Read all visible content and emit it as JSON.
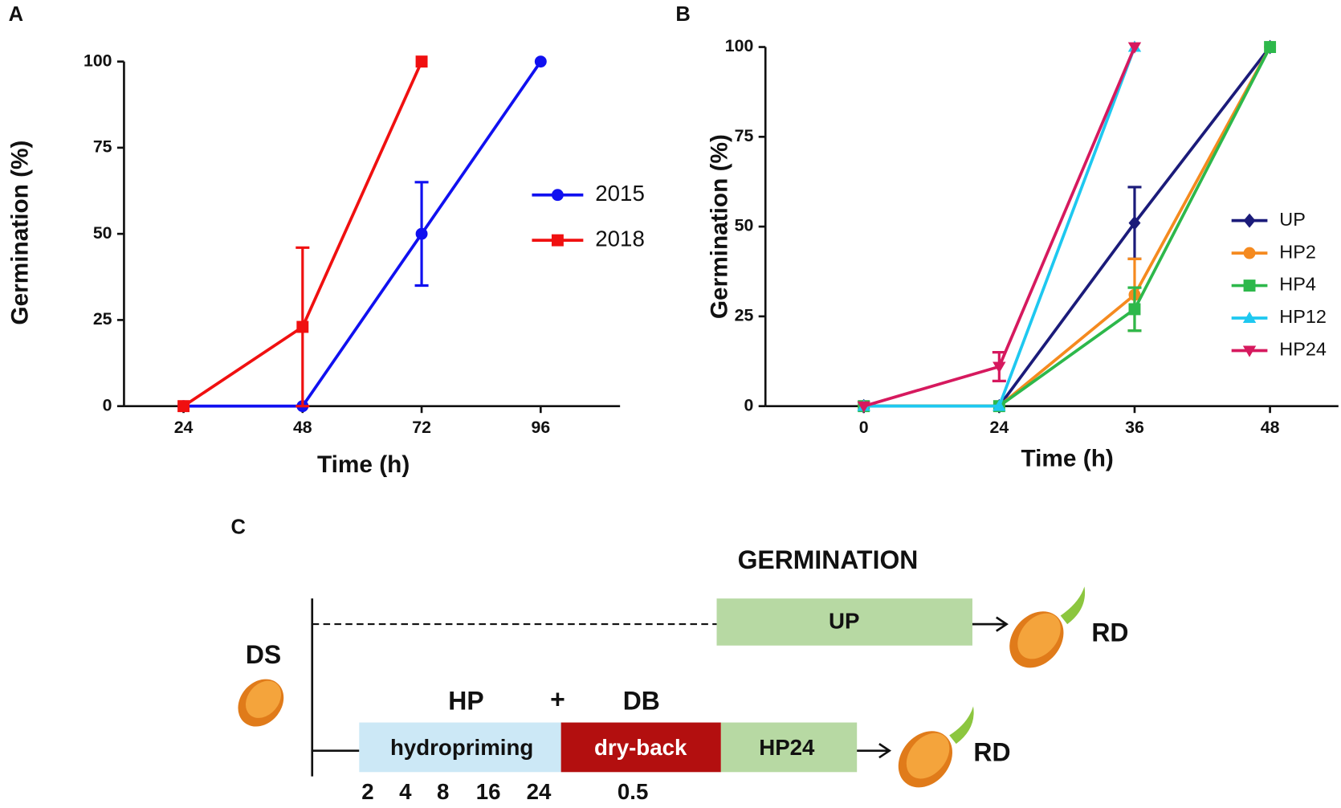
{
  "chart_data": [
    {
      "type": "line",
      "label": "A",
      "ylabel": "Germination (%)",
      "xlabel": "Time (h)",
      "xlim": [
        12,
        112
      ],
      "xticks": [
        24,
        48,
        72,
        96
      ],
      "ylim": [
        0,
        100
      ],
      "yticks": [
        0,
        25,
        50,
        75,
        100
      ],
      "legend": "right",
      "series": [
        {
          "name": "2015",
          "color": "#1010f0",
          "marker": "circle",
          "x": [
            24,
            48,
            72,
            96
          ],
          "values": [
            0,
            0,
            50,
            100
          ],
          "errors": [
            0,
            0,
            15,
            0
          ]
        },
        {
          "name": "2018",
          "color": "#f01010",
          "marker": "square",
          "x": [
            24,
            48,
            72
          ],
          "values": [
            0,
            23,
            100
          ],
          "errors": [
            0,
            23,
            0
          ]
        }
      ]
    },
    {
      "type": "line",
      "label": "B",
      "ylabel": "Germination (%)",
      "xlabel": "Time (h)",
      "categories": [
        "0",
        "24",
        "36",
        "48"
      ],
      "ylim": [
        0,
        100
      ],
      "yticks": [
        0,
        25,
        50,
        75,
        100
      ],
      "legend": "right",
      "series": [
        {
          "name": "UP",
          "color": "#1b1b7a",
          "marker": "diamond",
          "values": [
            0,
            0,
            51,
            100
          ],
          "errors": [
            0,
            0,
            10,
            0
          ]
        },
        {
          "name": "HP2",
          "color": "#f58a1f",
          "marker": "circle",
          "values": [
            0,
            0,
            31,
            100
          ],
          "errors": [
            0,
            0,
            10,
            0
          ]
        },
        {
          "name": "HP4",
          "color": "#2db84b",
          "marker": "square",
          "values": [
            0,
            0,
            27,
            100
          ],
          "errors": [
            0,
            0,
            6,
            0
          ]
        },
        {
          "name": "HP12",
          "color": "#1ec8f0",
          "marker": "triangle-up",
          "values": [
            0,
            0,
            100,
            null
          ],
          "errors": [
            0,
            0,
            0,
            null
          ]
        },
        {
          "name": "HP24",
          "color": "#d6195e",
          "marker": "triangle-down",
          "values": [
            0,
            11,
            100,
            null
          ],
          "errors": [
            0,
            4,
            0,
            null
          ]
        }
      ]
    }
  ],
  "diagram": {
    "label": "C",
    "heading": "GERMINATION",
    "dry_seed": "DS",
    "up_box": "UP",
    "up_result": "RD",
    "hp": "HP",
    "plus": "+",
    "db": "DB",
    "hydropriming": "hydropriming",
    "dry_back": "dry-back",
    "hp24_box": "HP24",
    "hp_result": "RD",
    "hp_times": [
      "2",
      "4",
      "8",
      "16",
      "24"
    ],
    "db_time": "0.5"
  }
}
